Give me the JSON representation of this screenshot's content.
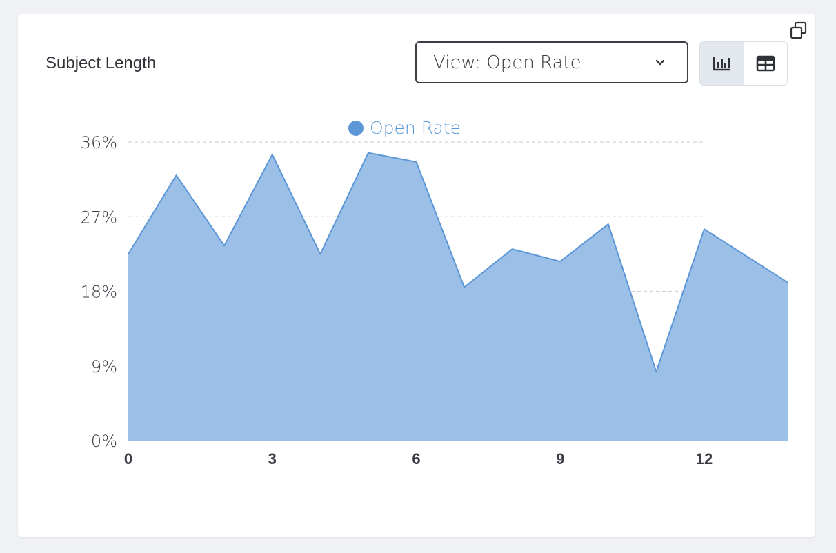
{
  "card": {
    "title": "Subject Length"
  },
  "controls": {
    "view_select_label": "View: Open Rate",
    "chart_view_icon": "bar-chart-icon",
    "table_view_icon": "table-icon",
    "expand_icon": "expand-icon",
    "active_view": "chart"
  },
  "colors": {
    "series_fill": "#9bbfe7",
    "series_line": "#5b96d6",
    "legend_text": "#5b96d6",
    "grid": "#cfd3d9",
    "active_toggle_bg": "#e3e7ee"
  },
  "chart_data": {
    "type": "area",
    "title": "",
    "xlabel": "",
    "ylabel": "",
    "legend_position": "top-center",
    "grid": true,
    "x_ticks": [
      "0",
      "3",
      "6",
      "9",
      "12"
    ],
    "y_ticks": [
      "0%",
      "9%",
      "18%",
      "27%",
      "36%"
    ],
    "ylim": [
      0,
      36
    ],
    "xlim": [
      0,
      13.7
    ],
    "x": [
      0,
      1,
      2,
      3,
      4,
      5,
      6,
      7,
      8,
      9,
      10,
      11,
      12,
      14
    ],
    "series": [
      {
        "name": "Open Rate",
        "values": [
          22.5,
          32,
          23.5,
          34.5,
          22.5,
          34.7,
          33.6,
          18.5,
          23.1,
          21.6,
          26.1,
          8.3,
          25.5,
          18.1
        ]
      }
    ]
  }
}
